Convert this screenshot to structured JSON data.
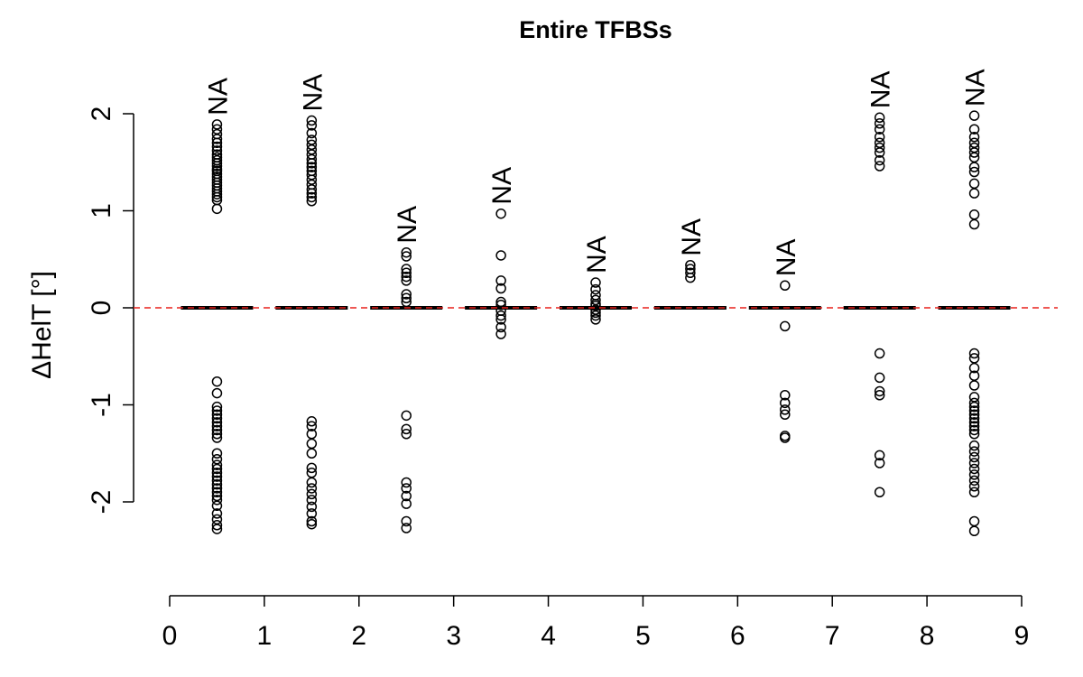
{
  "chart_data": {
    "type": "scatter",
    "title": "Entire TFBSs",
    "xlabel": "",
    "ylabel": "ΔHelT [°]",
    "xlim": [
      0,
      9
    ],
    "ylim": [
      -3,
      2.5
    ],
    "x_ticks": [
      "0",
      "1",
      "2",
      "3",
      "4",
      "5",
      "6",
      "7",
      "8",
      "9"
    ],
    "y_ticks": [
      "-2",
      "-1",
      "0",
      "1",
      "2"
    ],
    "reference_line": {
      "y": 0,
      "color": "#e8201c",
      "style": "dashed"
    },
    "grid": false,
    "legend": "none",
    "point_color": "#000000",
    "median_bar_color": "#000000",
    "groups": [
      {
        "x": 0.5,
        "na_label": "NA",
        "median": 0,
        "points": [
          1.89,
          1.84,
          1.79,
          1.74,
          1.7,
          1.66,
          1.62,
          1.58,
          1.55,
          1.52,
          1.49,
          1.46,
          1.43,
          1.41,
          1.38,
          1.35,
          1.32,
          1.29,
          1.26,
          1.23,
          1.2,
          1.17,
          1.14,
          1.11,
          1.02,
          -0.76,
          -0.88,
          -1.02,
          -1.06,
          -1.1,
          -1.14,
          -1.18,
          -1.22,
          -1.26,
          -1.3,
          -1.34,
          -1.5,
          -1.56,
          -1.62,
          -1.66,
          -1.7,
          -1.74,
          -1.78,
          -1.82,
          -1.86,
          -1.9,
          -1.94,
          -1.98,
          -2.04,
          -2.12,
          -2.18,
          -2.24,
          -2.28
        ]
      },
      {
        "x": 1.5,
        "na_label": "NA",
        "median": 0,
        "points": [
          1.93,
          1.88,
          1.8,
          1.73,
          1.68,
          1.63,
          1.58,
          1.53,
          1.49,
          1.45,
          1.41,
          1.37,
          1.32,
          1.27,
          1.22,
          1.18,
          1.14,
          1.1,
          -1.17,
          -1.22,
          -1.3,
          -1.4,
          -1.5,
          -1.65,
          -1.7,
          -1.8,
          -1.86,
          -1.92,
          -1.98,
          -2.05,
          -2.12,
          -2.2,
          -2.23
        ]
      },
      {
        "x": 2.5,
        "na_label": "NA",
        "median": 0,
        "points": [
          0.57,
          0.53,
          0.4,
          0.36,
          0.32,
          0.28,
          0.14,
          0.1,
          0.06,
          -1.11,
          -1.25,
          -1.3,
          -1.8,
          -1.86,
          -1.94,
          -2.02,
          -2.2,
          -2.27
        ]
      },
      {
        "x": 3.5,
        "na_label": "NA",
        "median": 0,
        "points": [
          0.97,
          0.54,
          0.28,
          0.2,
          0.06,
          0.03,
          -0.03,
          -0.08,
          -0.12,
          -0.2,
          -0.27
        ]
      },
      {
        "x": 4.5,
        "na_label": "NA",
        "median": 0,
        "points": [
          0.26,
          0.19,
          0.13,
          0.08,
          0.04,
          0.02,
          -0.02,
          -0.05,
          -0.08,
          -0.12
        ]
      },
      {
        "x": 5.5,
        "na_label": "NA",
        "median": 0,
        "points": [
          0.44,
          0.4,
          0.36,
          0.31
        ]
      },
      {
        "x": 6.5,
        "na_label": "NA",
        "median": 0,
        "points": [
          0.23,
          -0.19,
          -0.9,
          -0.98,
          -1.05,
          -1.1,
          -1.32,
          -1.34
        ]
      },
      {
        "x": 7.5,
        "na_label": "NA",
        "median": 0,
        "points": [
          1.96,
          1.9,
          1.84,
          1.76,
          1.7,
          1.65,
          1.6,
          1.52,
          1.46,
          -0.47,
          -0.72,
          -0.86,
          -0.9,
          -1.52,
          -1.6,
          -1.9
        ]
      },
      {
        "x": 8.5,
        "na_label": "NA",
        "median": 0,
        "points": [
          1.98,
          1.84,
          1.76,
          1.7,
          1.65,
          1.6,
          1.55,
          1.45,
          1.4,
          1.28,
          1.18,
          0.96,
          0.86,
          -0.47,
          -0.52,
          -0.62,
          -0.7,
          -0.8,
          -0.92,
          -0.98,
          -1.02,
          -1.06,
          -1.1,
          -1.14,
          -1.18,
          -1.22,
          -1.26,
          -1.3,
          -1.42,
          -1.48,
          -1.54,
          -1.6,
          -1.66,
          -1.72,
          -1.78,
          -1.84,
          -1.9,
          -2.2,
          -2.3
        ]
      }
    ]
  }
}
